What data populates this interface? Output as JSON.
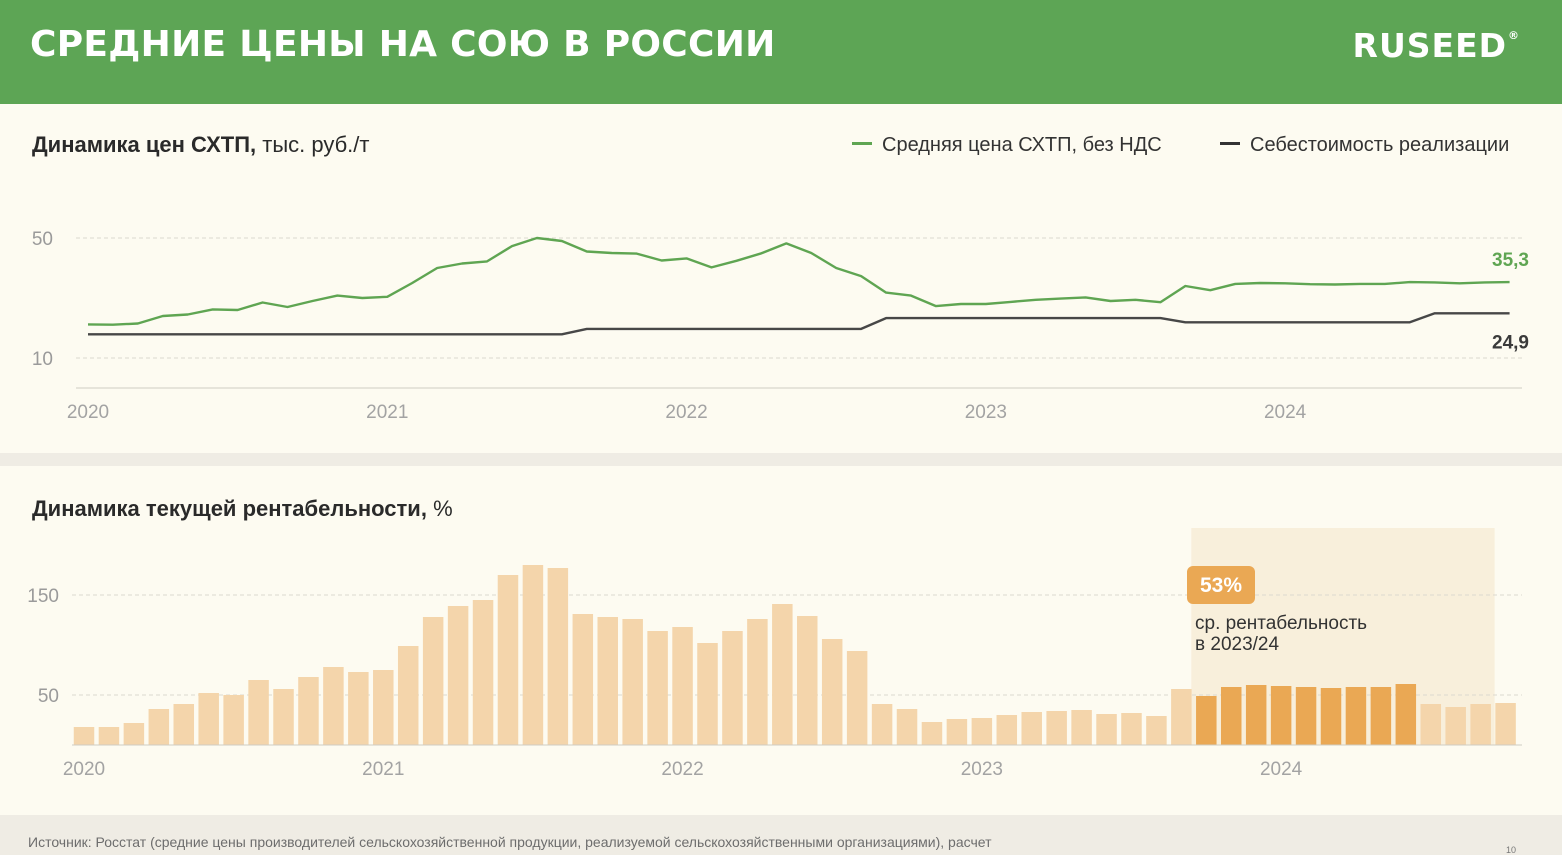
{
  "header": {
    "title": "СРЕДНИЕ ЦЕНЫ НА СОЮ В РОССИИ",
    "logo": "RUSEED",
    "logo_mark": "®"
  },
  "colors": {
    "header_green": "#5da555",
    "price_line": "#5fa552",
    "cost_line": "#474747",
    "bar_light": "#f4d5ab",
    "bar_highlight": "#eaa854",
    "highlight_band": "#f8efdb",
    "badge": "#eaa854"
  },
  "price_panel": {
    "title_bold": "Динамика цен СХТП,",
    "title_rest": " тыс. руб./т"
  },
  "profit_panel": {
    "title_bold": "Динамика текущей рентабельности,",
    "title_rest": " %"
  },
  "footer": {
    "source": "Источник: Росстат (средние цены производителей сельскохозяйственной продукции, реализуемой сельскохозяйственными организациями), расчет",
    "page": "10"
  },
  "chart_data": [
    {
      "type": "line",
      "title": "Динамика цен СХТП, тыс. руб./т",
      "ylim": [
        10,
        50
      ],
      "yticks": [
        50,
        10
      ],
      "year_labels": [
        "2020",
        "2021",
        "2022",
        "2023",
        "2024"
      ],
      "legend_placement": "top-right",
      "grid": true,
      "x_period": "monthly, Jan 2020 – Oct 2024",
      "series": [
        {
          "name": "Средняя цена СХТП, без НДС",
          "color": "#5fa552",
          "end_label": "35,3",
          "values": [
            21.2,
            21.1,
            21.5,
            24.0,
            24.5,
            26.2,
            26.0,
            28.5,
            27.0,
            29.0,
            30.8,
            30.0,
            30.4,
            35.0,
            40.0,
            41.5,
            42.2,
            47.3,
            50.0,
            49.0,
            45.5,
            45.0,
            44.8,
            42.5,
            43.2,
            40.2,
            42.4,
            44.9,
            48.2,
            45.0,
            40.0,
            37.3,
            31.8,
            30.8,
            27.3,
            28.0,
            28.0,
            28.7,
            29.4,
            29.8,
            30.2,
            29.0,
            29.4,
            28.6,
            34.0,
            32.6,
            34.7,
            35.0,
            34.9,
            34.6,
            34.5,
            34.7,
            34.7,
            35.3,
            35.2,
            34.9,
            35.2,
            35.3
          ]
        },
        {
          "name": "Себестоимость реализации",
          "color": "#474747",
          "end_label": "24,9",
          "values": [
            17.9,
            17.9,
            17.9,
            17.9,
            17.9,
            17.9,
            17.9,
            17.9,
            17.9,
            17.9,
            17.9,
            17.9,
            17.9,
            17.9,
            17.9,
            17.9,
            17.9,
            17.9,
            17.9,
            17.9,
            19.7,
            19.7,
            19.7,
            19.7,
            19.7,
            19.7,
            19.7,
            19.7,
            19.7,
            19.7,
            19.7,
            19.7,
            23.3,
            23.3,
            23.3,
            23.3,
            23.3,
            23.3,
            23.3,
            23.3,
            23.3,
            23.3,
            23.3,
            23.3,
            21.9,
            21.9,
            21.9,
            21.9,
            21.9,
            21.9,
            21.9,
            21.9,
            21.9,
            21.9,
            24.9,
            24.9,
            24.9,
            24.9
          ]
        }
      ]
    },
    {
      "type": "bar",
      "title": "Динамика текущей рентабельности, %",
      "yticks": [
        150,
        50
      ],
      "ylim": [
        0,
        180
      ],
      "year_labels": [
        "2020",
        "2021",
        "2022",
        "2023",
        "2024"
      ],
      "grid": true,
      "x_period": "monthly, Jan 2020 – Oct 2024",
      "values": [
        18,
        18,
        22,
        36,
        41,
        52,
        50,
        65,
        56,
        68,
        78,
        73,
        75,
        99,
        128,
        139,
        145,
        170,
        180,
        177,
        131,
        128,
        126,
        114,
        118,
        102,
        114,
        126,
        141,
        129,
        106,
        94,
        41,
        36,
        23,
        26,
        27,
        30,
        33,
        34,
        35,
        31,
        32,
        29,
        56,
        49,
        58,
        60,
        59,
        58,
        57,
        58,
        58,
        61,
        41,
        38,
        41,
        42
      ],
      "highlight_range_label": "2023/24",
      "highlighted_bars": [
        45,
        46,
        47,
        48,
        49,
        50,
        51,
        52,
        53,
        54,
        55,
        56,
        57
      ],
      "annotation": {
        "badge": "53%",
        "text_line1": "ср. рентабельность",
        "text_line2": "в 2023/24"
      }
    }
  ]
}
